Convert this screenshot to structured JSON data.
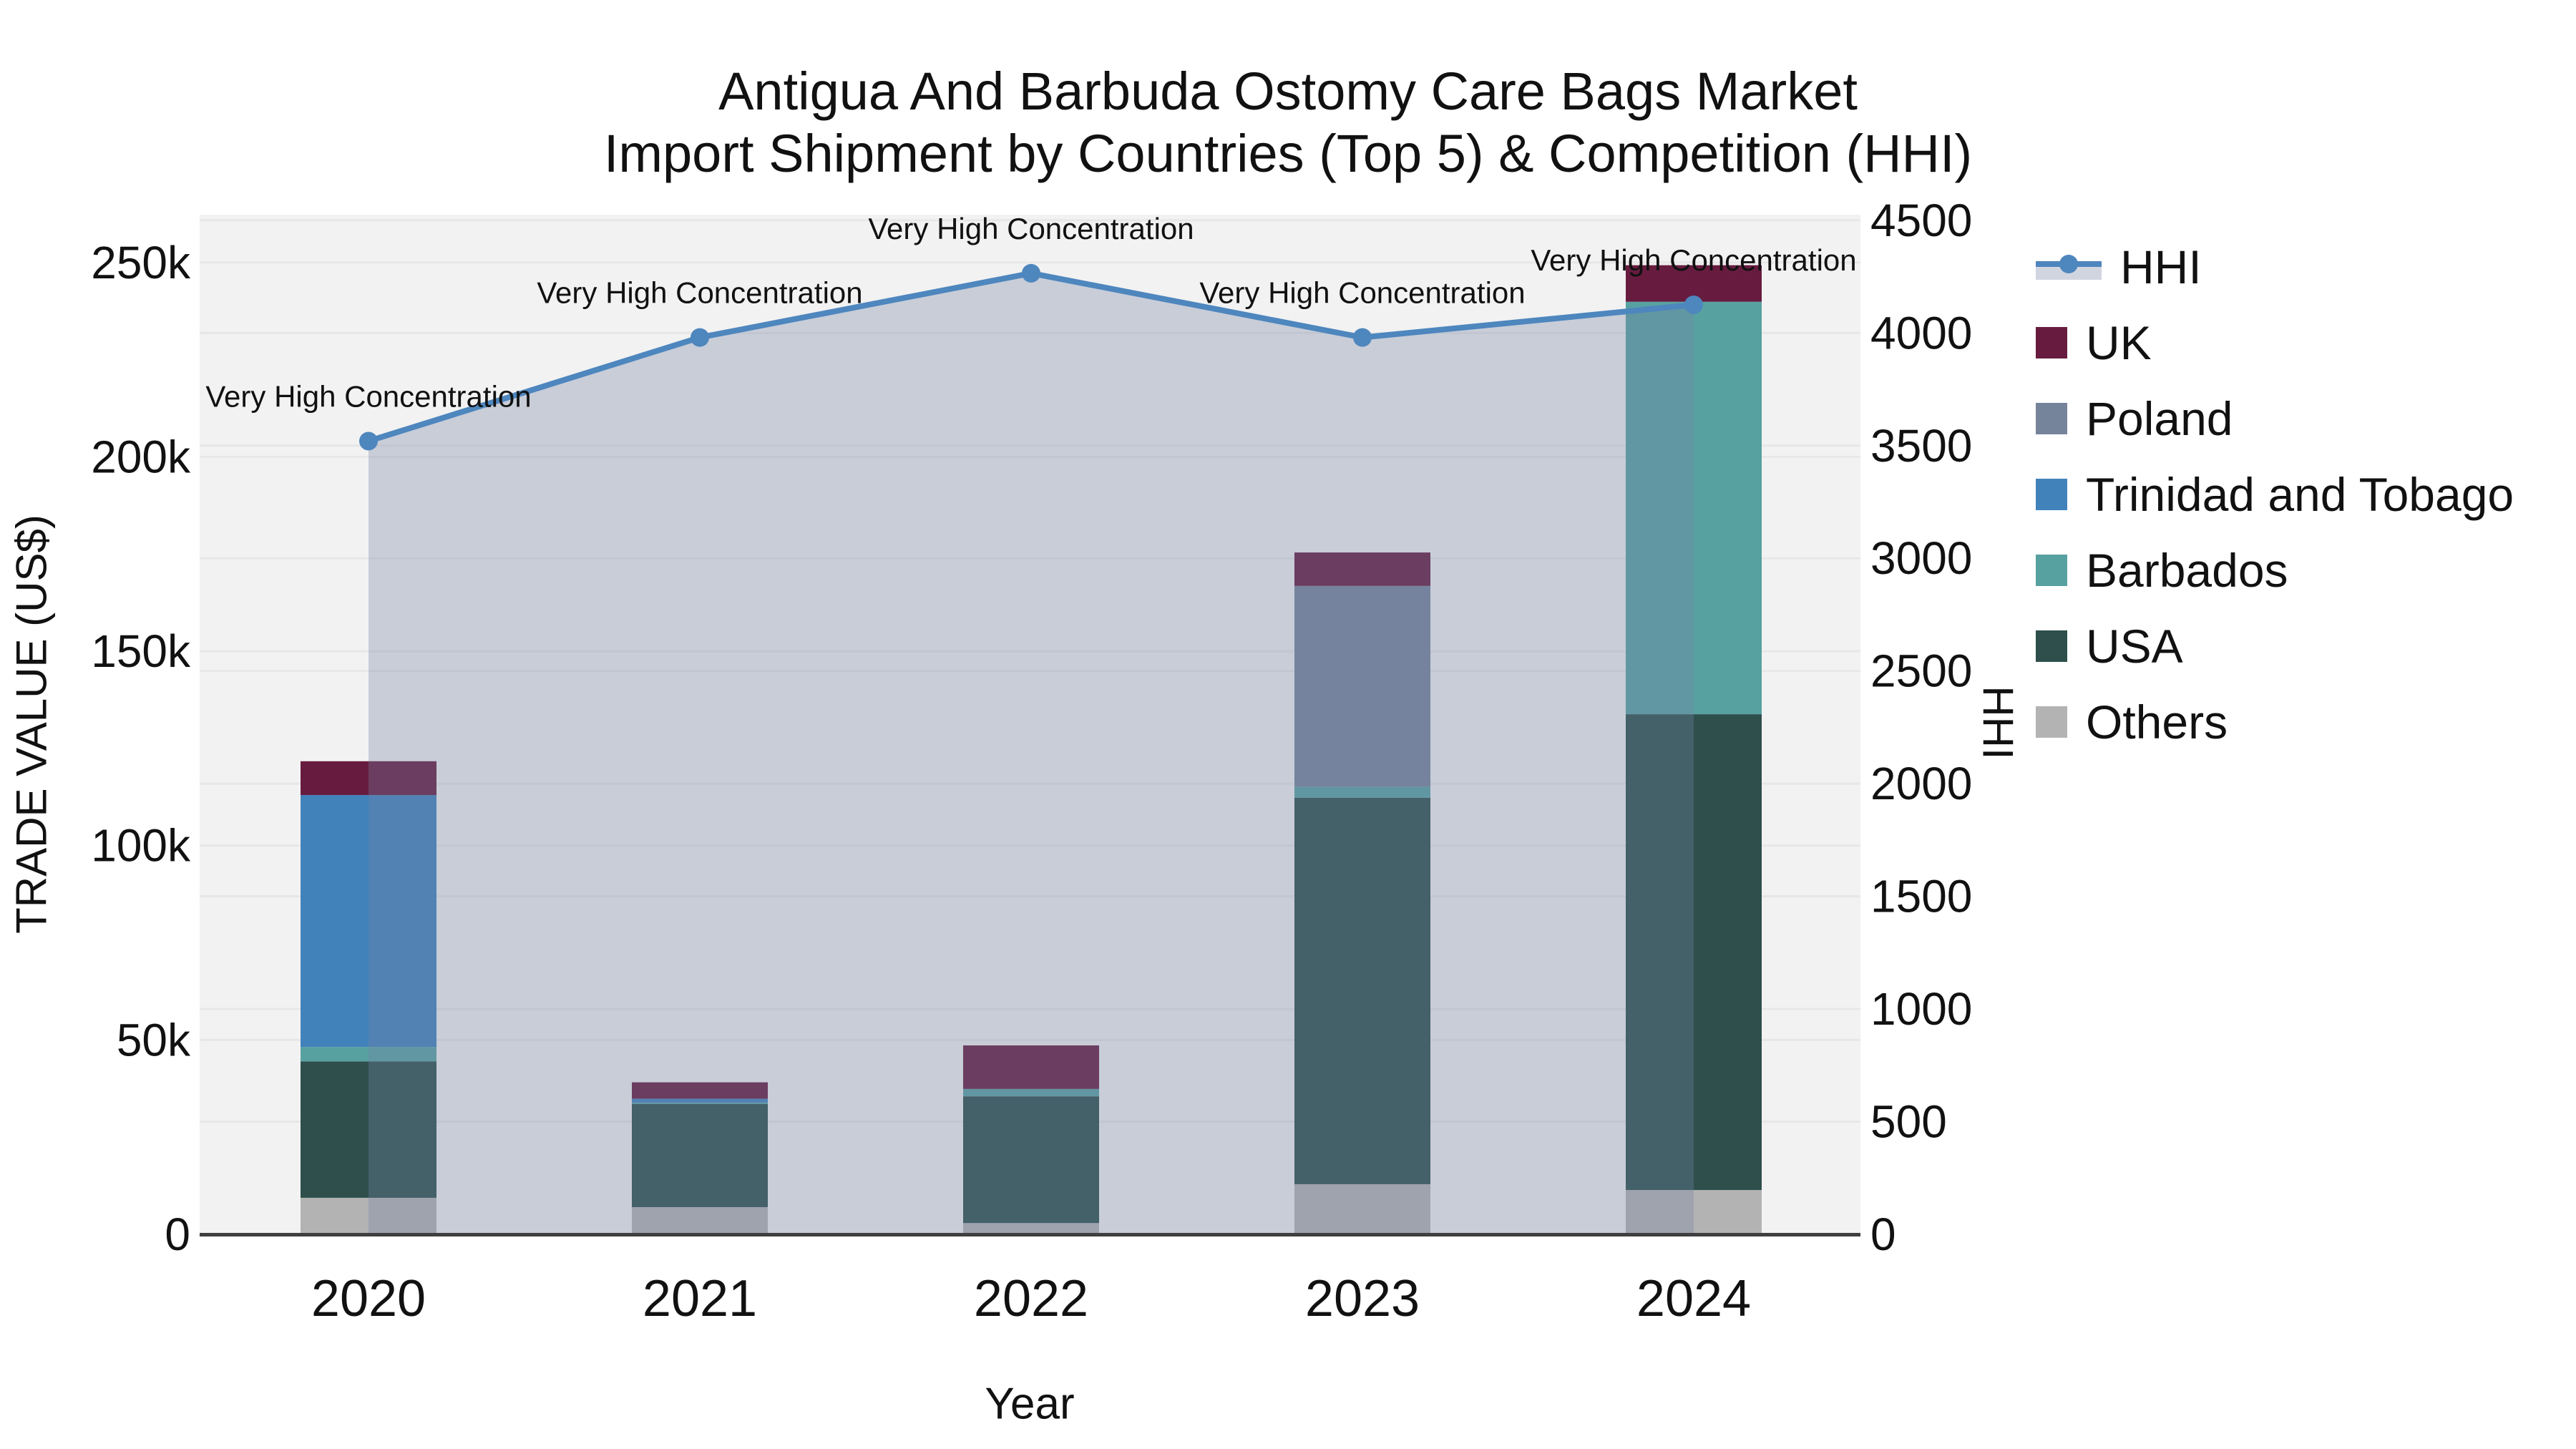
{
  "title": {
    "line1": "Antigua And Barbuda Ostomy Care Bags Market",
    "line2": "Import Shipment by Countries (Top 5) & Competition (HHI)"
  },
  "axes": {
    "x": {
      "title": "Year",
      "categories": [
        "2020",
        "2021",
        "2022",
        "2023",
        "2024"
      ]
    },
    "y_left": {
      "title": "TRADE VALUE (US$)",
      "tick_values_k": [
        0,
        50,
        100,
        150,
        200,
        250
      ],
      "tick_labels": [
        "0",
        "50k",
        "100k",
        "150k",
        "200k",
        "250k"
      ],
      "max_k": 262.3
    },
    "y_right": {
      "title": "HHI",
      "min": 0,
      "max": 4500,
      "tick_step": 500,
      "max_plot": 4525
    }
  },
  "legend": [
    {
      "label": "HHI",
      "type": "line",
      "color": "#4E86BE"
    },
    {
      "label": "UK",
      "type": "swatch",
      "color": "#671C3F"
    },
    {
      "label": "Poland",
      "type": "swatch",
      "color": "#76849B"
    },
    {
      "label": "Trinidad and Tobago",
      "type": "swatch",
      "color": "#4182BB"
    },
    {
      "label": "Barbados",
      "type": "swatch",
      "color": "#58A1A1"
    },
    {
      "label": "USA",
      "type": "swatch",
      "color": "#2E4F4C"
    },
    {
      "label": "Others",
      "type": "swatch",
      "color": "#B3B3B3"
    }
  ],
  "chart_data": {
    "type": [
      "bar",
      "line"
    ],
    "title": "Antigua And Barbuda Ostomy Care Bags Market Import Shipment by Countries (Top 5) & Competition (HHI)",
    "xlabel": "Year",
    "ylabel_left": "TRADE VALUE (US$)",
    "ylabel_right": "HHI",
    "categories": [
      "2020",
      "2021",
      "2022",
      "2023",
      "2024"
    ],
    "bar_unit": "US$ thousands",
    "stack_order_bottom_to_top": [
      "Others",
      "USA",
      "Barbados",
      "Trinidad and Tobago",
      "Poland",
      "UK"
    ],
    "bar_series": [
      {
        "name": "Others",
        "color": "#B3B3B3",
        "values_k": [
          9.4,
          7.0,
          2.9,
          12.9,
          11.4
        ]
      },
      {
        "name": "USA",
        "color": "#2E4F4C",
        "values_k": [
          35.1,
          26.5,
          32.6,
          99.4,
          122.4
        ]
      },
      {
        "name": "Barbados",
        "color": "#58A1A1",
        "values_k": [
          3.7,
          0.4,
          1.9,
          2.8,
          106.1
        ]
      },
      {
        "name": "Trinidad and Tobago",
        "color": "#4182BB",
        "values_k": [
          64.8,
          1.0,
          0,
          0,
          0
        ]
      },
      {
        "name": "Poland",
        "color": "#76849B",
        "values_k": [
          0,
          0,
          0,
          51.7,
          0
        ]
      },
      {
        "name": "UK",
        "color": "#671C3F",
        "values_k": [
          8.7,
          4.2,
          11.2,
          8.6,
          9.4
        ]
      }
    ],
    "bar_totals_k": [
      121.7,
      39.1,
      48.6,
      175.4,
      249.3
    ],
    "line_series": {
      "name": "HHI",
      "color": "#4E86BE",
      "fill_color": "rgba(115,130,163,0.33)",
      "values": [
        3520,
        3980,
        4265,
        3980,
        4125
      ]
    },
    "annotations": [
      "Very High Concentration",
      "Very High Concentration",
      "Very High Concentration",
      "Very High Concentration",
      "Very High Concentration"
    ],
    "ylim_left_k": [
      0,
      262.3
    ],
    "ylim_right": [
      0,
      4525
    ],
    "grid": true,
    "legend_position": "right",
    "plot_bg": "#F2F2F2",
    "grid_color": "#E7E7E7",
    "axisline_color": "#3F3F3F",
    "text_color": "#111111"
  }
}
